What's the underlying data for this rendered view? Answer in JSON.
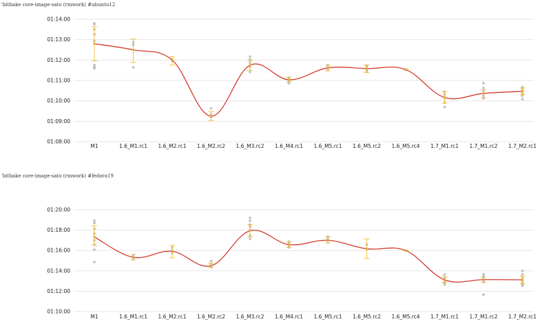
{
  "colors": {
    "line": "#d33a2c",
    "error_bar": "#f0c040",
    "mean_dot": "#e8a838",
    "sample_dot": "#b8b8b8",
    "grid": "#e6e6e6"
  },
  "chart_data": [
    {
      "type": "line",
      "title": "'bitbake core-image-sato (rmwork) #ubuntu12",
      "grid": true,
      "ylim_seconds": [
        4080,
        4440
      ],
      "yticks": [
        "01:08:00",
        "01:09:00",
        "01:10:00",
        "01:11:00",
        "01:12:00",
        "01:13:00",
        "01:14:00"
      ],
      "yticks_seconds": [
        4080,
        4140,
        4200,
        4260,
        4320,
        4380,
        4440
      ],
      "categories": [
        "M1",
        "1.6_M1.rc1",
        "1.6_M2.rc1",
        "1.6_M2.rc2",
        "1.6_M3.rc2",
        "1.6_M4.rc1",
        "1.6_M5.rc1",
        "1.6_M5.rc2",
        "1.6_M5.rc4",
        "1.7_M1.rc1",
        "1.7_M1.rc2",
        "1.7_M2.rc1"
      ],
      "mean_seconds": [
        4368,
        4350,
        4320,
        4155,
        4305,
        4262,
        4297,
        4295,
        4292,
        4210,
        4222,
        4228
      ],
      "err_low_seconds": [
        4318,
        4313,
        4305,
        4142,
        4290,
        4255,
        4288,
        4283,
        4290,
        4193,
        4208,
        4218
      ],
      "err_high_seconds": [
        4418,
        4382,
        4330,
        4168,
        4318,
        4270,
        4305,
        4306,
        4294,
        4227,
        4232,
        4238
      ],
      "samples_seconds": [
        [
          4428,
          4425,
          4410,
          4396,
          4376,
          4305,
          4300,
          4296
        ],
        [
          4372,
          4365,
          4298
        ],
        [
          4322,
          4318
        ],
        [
          4178,
          4160,
          4152
        ],
        [
          4330,
          4322,
          4312,
          4300,
          4285
        ],
        [
          4268,
          4265,
          4260,
          4258,
          4252
        ],
        [
          4305,
          4300,
          4293
        ],
        [
          4304,
          4300,
          4291,
          4286
        ],
        [
          4292
        ],
        [
          4226,
          4218,
          4208,
          4195,
          4182
        ],
        [
          4252,
          4238,
          4230,
          4222,
          4215,
          4208
        ],
        [
          4240,
          4235,
          4230,
          4222,
          4215,
          4205
        ]
      ]
    },
    {
      "type": "line",
      "title": "'bitbake core-image-sato (rmwork) #fedora19",
      "grid": true,
      "ylim_seconds": [
        4200,
        4800
      ],
      "yticks": [
        "01:10:00",
        "01:12:00",
        "01:14:00",
        "01:16:00",
        "01:18:00",
        "01:20:00"
      ],
      "yticks_seconds": [
        4200,
        4320,
        4440,
        4560,
        4680,
        4800
      ],
      "categories": [
        "M1",
        "1.6_M1.rc1",
        "1.6_M2.rc1",
        "1.6_M2.rc2",
        "1.6_M3.rc2",
        "1.6_M4.rc1",
        "1.6_M5.rc1",
        "1.6_M5.rc2",
        "1.6_M5.rc4",
        "1.7_M1.rc1",
        "1.7_M1.rc2",
        "1.7_M2.rc1"
      ],
      "mean_seconds": [
        4640,
        4520,
        4555,
        4470,
        4676,
        4595,
        4620,
        4570,
        4560,
        4387,
        4388,
        4387
      ],
      "err_low_seconds": [
        4590,
        4505,
        4517,
        4460,
        4640,
        4580,
        4602,
        4512,
        4558,
        4370,
        4372,
        4363
      ],
      "err_high_seconds": [
        4705,
        4537,
        4590,
        4485,
        4712,
        4612,
        4640,
        4628,
        4562,
        4405,
        4402,
        4410
      ],
      "samples_seconds": [
        [
          4735,
          4722,
          4688,
          4660,
          4620,
          4595,
          4565,
          4492
        ],
        [
          4530,
          4520,
          4512
        ],
        [
          4578,
          4560,
          4545
        ],
        [
          4498,
          4480,
          4468,
          4462
        ],
        [
          4752,
          4735,
          4712,
          4700,
          4680,
          4648,
          4628
        ],
        [
          4612,
          4600,
          4590,
          4578
        ],
        [
          4642,
          4628,
          4615
        ],
        [
          4595,
          4570
        ],
        [
          4560
        ],
        [
          4418,
          4400,
          4390,
          4378,
          4370,
          4358
        ],
        [
          4420,
          4408,
          4395,
          4385,
          4375,
          4300
        ],
        [
          4440,
          4420,
          4400,
          4382,
          4370,
          4358,
          4352
        ]
      ]
    }
  ]
}
